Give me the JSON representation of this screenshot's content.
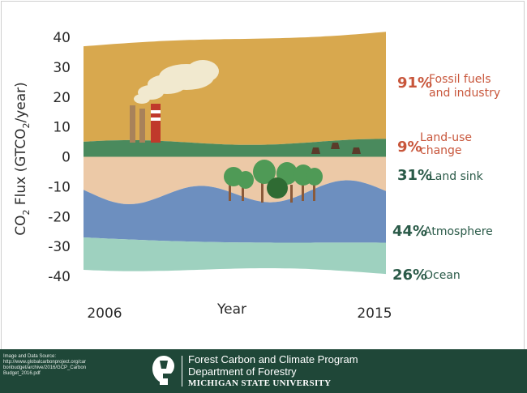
{
  "chart_data": {
    "type": "area",
    "ylabel": "CO2 Flux (GTCO2/year)",
    "xlabel": "Year",
    "x_range": [
      "2006",
      "2015"
    ],
    "x_tick_labels": [
      "2006",
      "2015"
    ],
    "ylim": [
      -40,
      40
    ],
    "y_ticks": [
      40,
      30,
      20,
      10,
      0,
      -10,
      -20,
      -30,
      -40
    ],
    "sources_total_approx": [
      37,
      42
    ],
    "sinks": [
      {
        "name": "Land sink",
        "percent": "31%"
      },
      {
        "name": "Atmosphere",
        "percent": "44%"
      },
      {
        "name": "Ocean",
        "percent": "26%"
      }
    ],
    "sources": [
      {
        "name": "Fossil fuels and industry",
        "percent": "91%"
      },
      {
        "name": "Land-use change",
        "percent": "9%"
      }
    ],
    "labels": [
      {
        "percent": "91%",
        "text_lines": [
          "Fossil fuels",
          "and industry"
        ],
        "color": "#c8563b"
      },
      {
        "percent": "9%",
        "text_lines": [
          "Land-use",
          "change"
        ],
        "color": "#c8563b"
      },
      {
        "percent": "31%",
        "text_lines": [
          "Land sink"
        ],
        "color": "#2a5a48"
      },
      {
        "percent": "44%",
        "text_lines": [
          "Atmosphere"
        ],
        "color": "#2a5a48"
      },
      {
        "percent": "26%",
        "text_lines": [
          "Ocean"
        ],
        "color": "#2a5a48"
      }
    ],
    "colors": {
      "fossil": "#d8a84e",
      "land_use": "#4a8a5d",
      "land_sink": "#ecc9a7",
      "atmosphere": "#6d8fbf",
      "ocean": "#9ed1bf"
    }
  },
  "footer": {
    "source_lines": [
      "Image and Data Source:",
      "http://www.globalcarbonproject.org/car",
      "bonbudget/archive/2016/GCP_Carbon",
      "Budget_2016.pdf"
    ],
    "org_line1": "Forest Carbon and Climate Program",
    "org_line2": "Department of Forestry",
    "org_line3": "MICHIGAN STATE UNIVERSITY"
  }
}
